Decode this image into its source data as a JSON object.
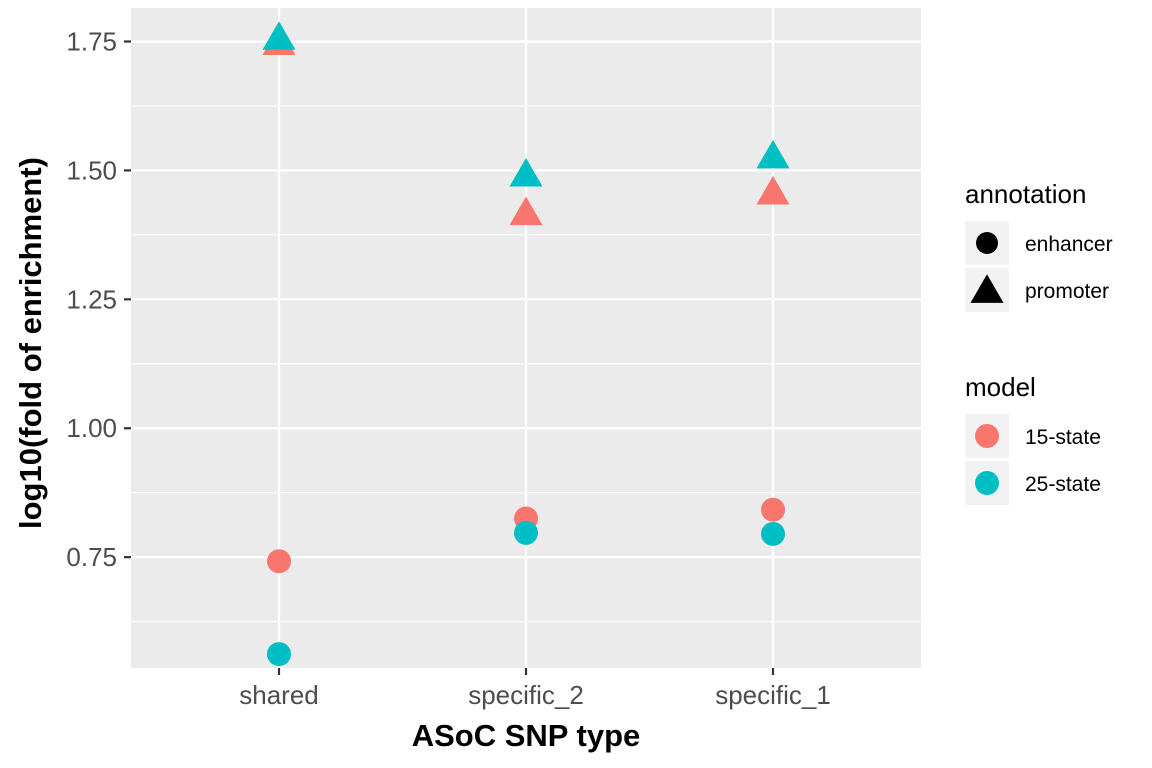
{
  "chart_data": {
    "type": "scatter",
    "xlabel": "ASoC SNP type",
    "ylabel": "log10(fold of enrichment)",
    "categories": [
      "shared",
      "specific_2",
      "specific_1"
    ],
    "ylim": [
      0.535,
      1.815
    ],
    "yticks": [
      0.75,
      1.0,
      1.25,
      1.5,
      1.75
    ],
    "ytick_labels": [
      "0.75",
      "1.00",
      "1.25",
      "1.50",
      "1.75"
    ],
    "grid": true,
    "legend_placement": "right",
    "legends": [
      {
        "title": "annotation",
        "items": [
          {
            "label": "enhancer",
            "shape": "circle"
          },
          {
            "label": "promoter",
            "shape": "triangle"
          }
        ]
      },
      {
        "title": "model",
        "items": [
          {
            "label": "15-state",
            "color": "#F8766D"
          },
          {
            "label": "25-state",
            "color": "#00BFC4"
          }
        ]
      }
    ],
    "points": [
      {
        "x": "shared",
        "y": 1.745,
        "model": "15-state",
        "annotation": "promoter"
      },
      {
        "x": "shared",
        "y": 1.755,
        "model": "25-state",
        "annotation": "promoter"
      },
      {
        "x": "shared",
        "y": 0.742,
        "model": "15-state",
        "annotation": "enhancer"
      },
      {
        "x": "shared",
        "y": 0.562,
        "model": "25-state",
        "annotation": "enhancer"
      },
      {
        "x": "specific_2",
        "y": 1.415,
        "model": "15-state",
        "annotation": "promoter"
      },
      {
        "x": "specific_2",
        "y": 1.49,
        "model": "25-state",
        "annotation": "promoter"
      },
      {
        "x": "specific_2",
        "y": 0.825,
        "model": "15-state",
        "annotation": "enhancer"
      },
      {
        "x": "specific_2",
        "y": 0.797,
        "model": "25-state",
        "annotation": "enhancer"
      },
      {
        "x": "specific_1",
        "y": 1.455,
        "model": "15-state",
        "annotation": "promoter"
      },
      {
        "x": "specific_1",
        "y": 1.525,
        "model": "25-state",
        "annotation": "promoter"
      },
      {
        "x": "specific_1",
        "y": 0.842,
        "model": "15-state",
        "annotation": "enhancer"
      },
      {
        "x": "specific_1",
        "y": 0.795,
        "model": "25-state",
        "annotation": "enhancer"
      }
    ]
  }
}
